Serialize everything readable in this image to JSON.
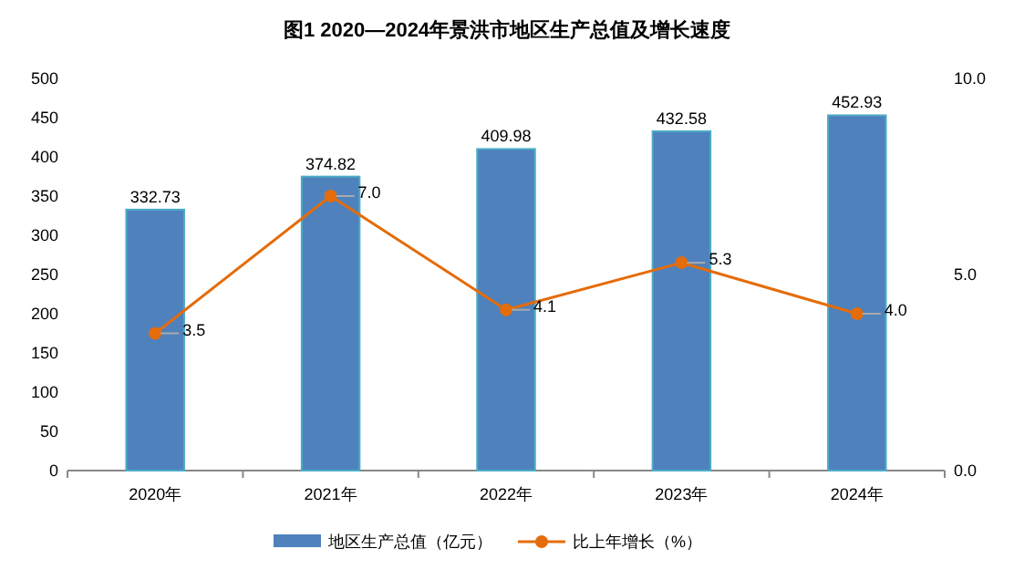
{
  "chart_data": {
    "type": "bar",
    "title": "图1  2020—2024年景洪市地区生产总值及增长速度",
    "categories": [
      "2020年",
      "2021年",
      "2022年",
      "2023年",
      "2024年"
    ],
    "series": [
      {
        "name": "地区生产总值（亿元）",
        "color": "#4f81bd",
        "values": [
          332.73,
          374.82,
          409.98,
          432.58,
          452.93
        ],
        "value_labels": [
          "332.73",
          "374.82",
          "409.98",
          "432.58",
          "452.93"
        ]
      },
      {
        "name": "比上年增长（%）",
        "type": "line",
        "axis": "y2",
        "color": "#e46c0a",
        "values": [
          3.5,
          7.0,
          4.1,
          5.3,
          4.0
        ],
        "value_labels": [
          "3.5",
          "7.0",
          "4.1",
          "5.3",
          "4.0"
        ]
      }
    ],
    "ylim": [
      0,
      500
    ],
    "yticks": [
      0,
      50,
      100,
      150,
      200,
      250,
      300,
      350,
      400,
      450,
      500
    ],
    "y2lim": [
      0,
      10
    ],
    "y2ticks": [
      {
        "value": 0,
        "label": "0.0"
      },
      {
        "value": 5,
        "label": "5.0"
      },
      {
        "value": 10,
        "label": "10.0"
      }
    ],
    "legend": "bottom",
    "marker": "circle",
    "line_style": "solid",
    "grid": false
  }
}
